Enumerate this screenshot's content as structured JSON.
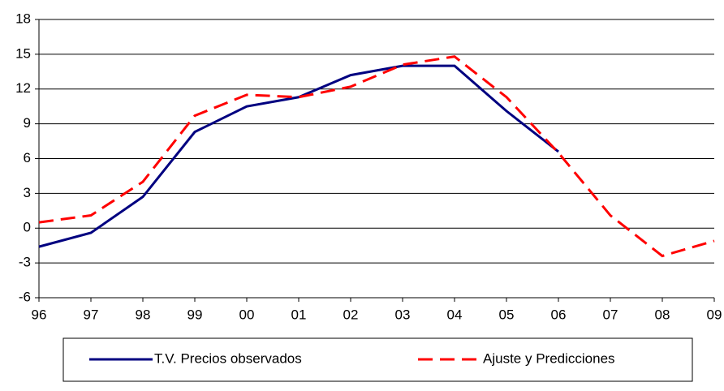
{
  "chart_data": {
    "type": "line",
    "categories": [
      "96",
      "97",
      "98",
      "99",
      "00",
      "01",
      "02",
      "03",
      "04",
      "05",
      "06",
      "07",
      "08",
      "09"
    ],
    "series": [
      {
        "name": "T.V. Precios observados",
        "color": "#000080",
        "values": [
          -1.6,
          -0.4,
          2.7,
          8.3,
          10.5,
          11.3,
          13.2,
          14.0,
          14.0,
          10.1,
          6.6,
          null,
          null,
          null
        ]
      },
      {
        "name": "Ajuste y Predicciones",
        "color": "#ff0000",
        "dashed": true,
        "values": [
          0.5,
          1.1,
          4.0,
          9.7,
          11.5,
          11.3,
          12.2,
          14.1,
          14.8,
          11.3,
          6.5,
          1.1,
          -2.4,
          -1.1
        ]
      }
    ],
    "ylim": [
      -6,
      18
    ],
    "yticks": [
      -6,
      -3,
      0,
      3,
      6,
      9,
      12,
      15,
      18
    ],
    "grid": true,
    "legend": "bottom"
  }
}
